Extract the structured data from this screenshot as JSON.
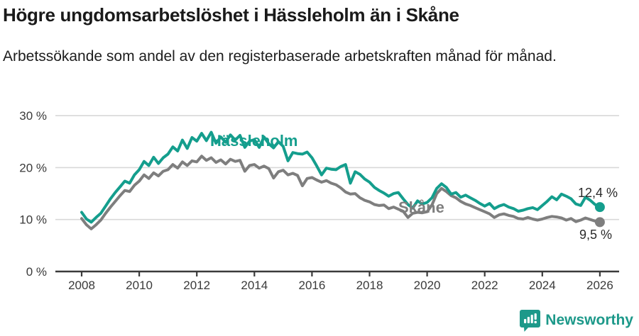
{
  "header": {
    "title": "Högre ungdomsarbetslöshet i Hässleholm än i Skåne",
    "subtitle": "Arbetssökande som andel av den registerbaserade arbetskraften månad för månad."
  },
  "chart_data": {
    "type": "line",
    "title": "Högre ungdomsarbetslöshet i Hässleholm än i Skåne",
    "xlabel": "",
    "ylabel": "",
    "x_start_year": 2008,
    "x_end_year": 2026,
    "points_per_year": 6,
    "ylim": [
      0,
      30
    ],
    "grid": "horizontal-only",
    "legend_position": "inline-labels-on-lines",
    "ytick_values": [
      0,
      10,
      20,
      30
    ],
    "ytick_labels": [
      "0 %",
      "10 %",
      "20 %",
      "30 %"
    ],
    "xtick_values": [
      2008,
      2010,
      2012,
      2014,
      2016,
      2018,
      2020,
      2022,
      2024,
      2026
    ],
    "xtick_labels": [
      "2008",
      "2010",
      "2012",
      "2014",
      "2016",
      "2018",
      "2020",
      "2022",
      "2024",
      "2026"
    ],
    "series": [
      {
        "name": "Skåne",
        "color": "#7e7e7e",
        "end_label": "9,5 %",
        "end_value": 9.5,
        "values": [
          10.2,
          9.0,
          8.2,
          9.0,
          9.9,
          11.2,
          12.4,
          13.5,
          14.6,
          15.6,
          15.4,
          16.6,
          17.4,
          18.6,
          17.9,
          19.0,
          18.4,
          19.3,
          19.6,
          20.6,
          19.9,
          21.1,
          20.4,
          21.3,
          21.1,
          22.2,
          21.4,
          21.9,
          21.0,
          21.5,
          20.7,
          21.6,
          21.2,
          21.4,
          19.3,
          20.4,
          20.6,
          19.9,
          20.3,
          19.8,
          18.0,
          19.2,
          19.5,
          18.6,
          18.9,
          18.5,
          16.5,
          17.9,
          18.1,
          17.6,
          17.2,
          17.5,
          17.0,
          16.7,
          16.1,
          15.3,
          14.9,
          15.0,
          14.2,
          13.7,
          13.4,
          12.9,
          12.7,
          12.8,
          12.1,
          12.4,
          12.0,
          11.6,
          10.4,
          11.2,
          11.4,
          11.3,
          11.5,
          12.8,
          15.0,
          16.0,
          15.4,
          14.6,
          14.2,
          13.5,
          13.0,
          12.7,
          12.3,
          11.9,
          11.5,
          11.1,
          10.4,
          10.9,
          11.1,
          10.8,
          10.6,
          10.2,
          10.1,
          10.4,
          10.1,
          9.9,
          10.1,
          10.4,
          10.6,
          10.5,
          10.3,
          9.9,
          10.2,
          9.6,
          9.9,
          10.3,
          10.0,
          9.7,
          9.5
        ]
      },
      {
        "name": "Hässleholm",
        "color": "#149e8d",
        "end_label": "12,4 %",
        "end_value": 12.4,
        "values": [
          11.4,
          10.1,
          9.5,
          10.4,
          11.2,
          12.6,
          14.0,
          15.2,
          16.3,
          17.4,
          17.0,
          18.6,
          19.6,
          21.2,
          20.4,
          22.0,
          20.8,
          21.9,
          22.6,
          24.0,
          23.2,
          25.3,
          23.7,
          25.8,
          25.1,
          26.6,
          25.2,
          26.8,
          24.7,
          25.9,
          24.9,
          26.3,
          25.3,
          26.2,
          23.9,
          25.1,
          25.4,
          23.9,
          25.9,
          24.6,
          23.8,
          25.0,
          24.1,
          21.3,
          22.9,
          22.7,
          22.6,
          23.0,
          21.9,
          20.3,
          18.6,
          19.9,
          19.7,
          19.6,
          20.2,
          20.6,
          17.0,
          19.2,
          18.7,
          17.8,
          17.2,
          16.2,
          15.6,
          15.1,
          14.5,
          15.0,
          15.2,
          14.0,
          12.9,
          12.2,
          13.6,
          13.0,
          13.3,
          14.2,
          16.0,
          16.9,
          16.2,
          14.9,
          15.2,
          14.3,
          14.7,
          14.2,
          13.7,
          13.1,
          12.6,
          13.1,
          12.1,
          12.6,
          12.9,
          12.4,
          12.1,
          11.6,
          11.8,
          12.1,
          12.3,
          11.9,
          12.7,
          13.5,
          14.4,
          13.8,
          14.9,
          14.5,
          14.0,
          13.0,
          12.7,
          14.3,
          13.7,
          12.9,
          12.4
        ]
      }
    ],
    "colors": {
      "hassleholm_line": "#149e8d",
      "skane_line": "#7e7e7e",
      "gridline": "#d8d8d8",
      "axis": "#3a3a3a",
      "text": "#1a1a1a"
    }
  },
  "footer": {
    "brand": "Newsworthy"
  }
}
